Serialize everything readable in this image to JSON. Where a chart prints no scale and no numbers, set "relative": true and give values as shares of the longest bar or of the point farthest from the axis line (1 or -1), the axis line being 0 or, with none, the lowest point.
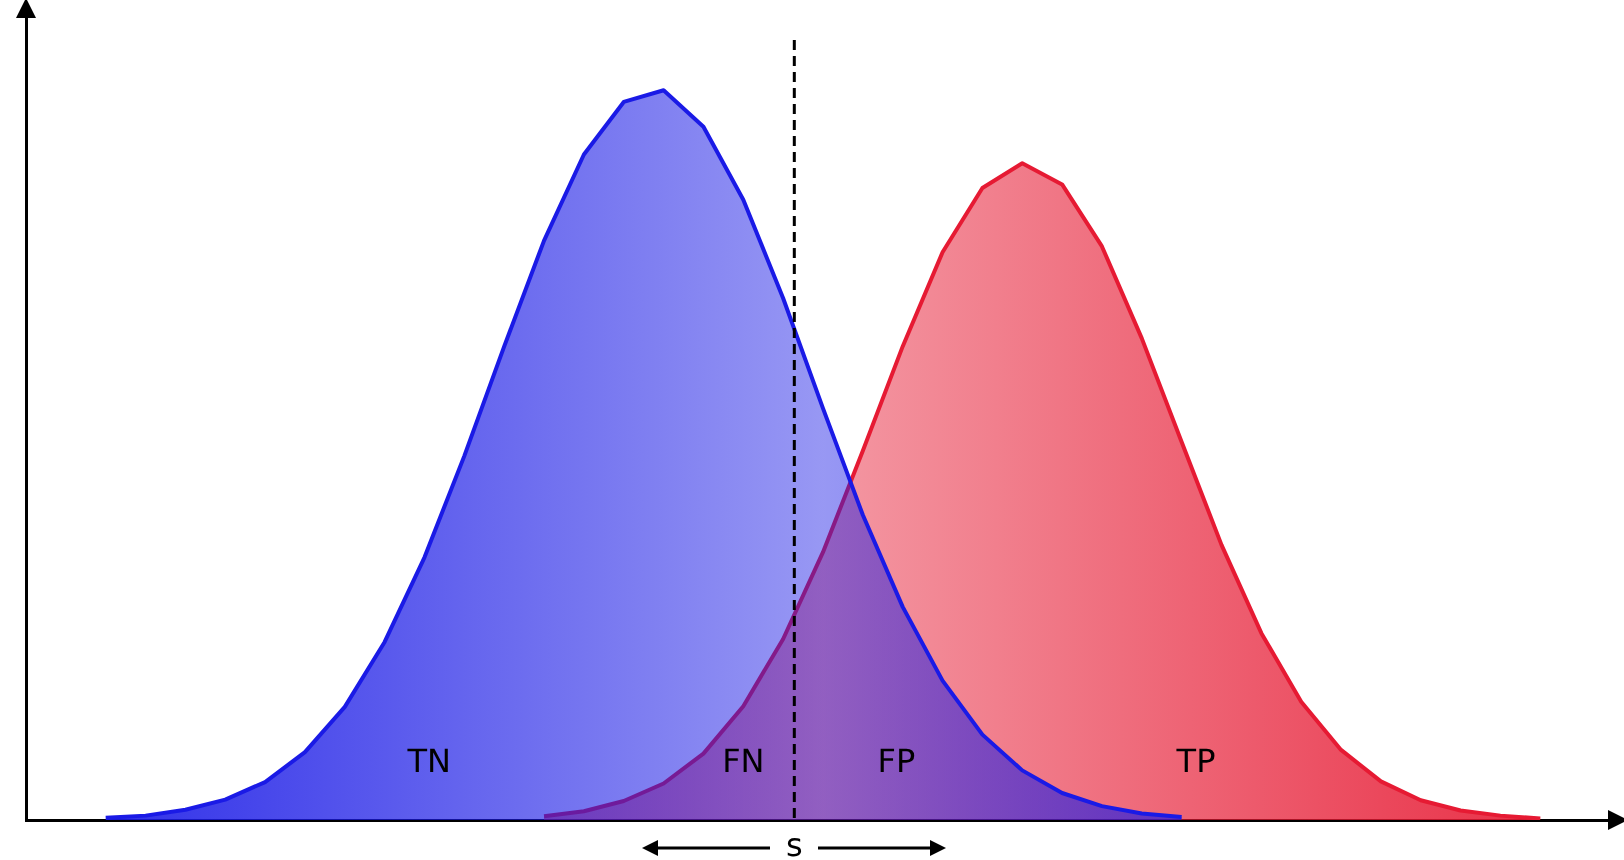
{
  "chart_data": {
    "type": "area",
    "relative": true,
    "categories": [
      null,
      null,
      null,
      null,
      null,
      null,
      null,
      null,
      null,
      null,
      null,
      null,
      null,
      null,
      null,
      null,
      null,
      null,
      null,
      null,
      null,
      null,
      null,
      null,
      null,
      null,
      null,
      null,
      null,
      null,
      null,
      null,
      null,
      null,
      null,
      null,
      null,
      null,
      null,
      null,
      null
    ],
    "series": [
      {
        "color": "#1a1ae6",
        "values": [
          null,
          null,
          0.003,
          0.006,
          0.014,
          0.028,
          0.052,
          0.093,
          0.155,
          0.244,
          0.36,
          0.499,
          0.649,
          0.794,
          0.912,
          0.984,
          1,
          0.95,
          0.85,
          0.715,
          0.564,
          0.418,
          0.292,
          0.191,
          0.117,
          0.068,
          0.037,
          0.019,
          0.009,
          0.004,
          null,
          null,
          null,
          null,
          null,
          null,
          null,
          null,
          null,
          null,
          null
        ]
      },
      {
        "color": "#e61a33",
        "values": [
          null,
          null,
          null,
          null,
          null,
          null,
          null,
          null,
          null,
          null,
          null,
          null,
          null,
          0.005,
          0.012,
          0.026,
          0.05,
          0.091,
          0.156,
          0.248,
          0.367,
          0.506,
          0.649,
          0.778,
          0.866,
          0.9,
          0.871,
          0.786,
          0.66,
          0.518,
          0.377,
          0.256,
          0.162,
          0.096,
          0.053,
          0.027,
          0.013,
          0.006,
          0.002,
          null,
          null
        ]
      }
    ],
    "ref_lines": [
      {
        "axis": "x",
        "label": "s",
        "color": "#000000",
        "line_style": "dashed"
      }
    ],
    "annotations": [
      "TN",
      "FN",
      "FP",
      "TP"
    ]
  }
}
